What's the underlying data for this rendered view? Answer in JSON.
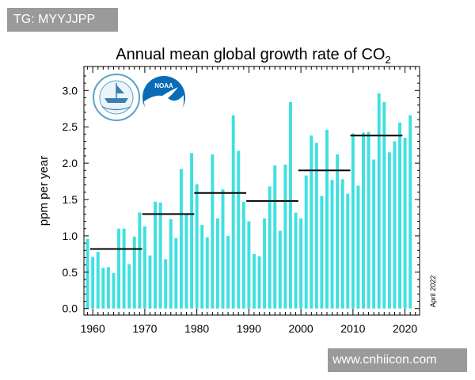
{
  "overlay": {
    "tag_text": "TG: MYYJJPP",
    "site_text": "www.cnhiicon.com"
  },
  "logos": {
    "noaa_text": "NOAA",
    "seal_icon": "commerce-seal-icon",
    "noaa_icon": "noaa-logo-icon"
  },
  "chart_data": {
    "type": "bar",
    "title": "Annual mean global growth rate of CO",
    "title_subscript": "2",
    "xlabel": "",
    "ylabel": "ppm per year",
    "note": "April 2022",
    "ylim": [
      -0.09,
      3.33
    ],
    "xlim": [
      1958.3,
      2022.8
    ],
    "yticks": [
      0.0,
      0.5,
      1.0,
      1.5,
      2.0,
      2.5,
      3.0
    ],
    "ytick_labels": [
      "0.0",
      "0.5",
      "1.0",
      "1.5",
      "2.0",
      "2.5",
      "3.0"
    ],
    "xticks": [
      1960,
      1970,
      1980,
      1990,
      2000,
      2010,
      2020
    ],
    "xtick_labels": [
      "1960",
      "1970",
      "1980",
      "1990",
      "2000",
      "2010",
      "2020"
    ],
    "bar_color": "#40e0e0",
    "x": [
      1959,
      1960,
      1961,
      1962,
      1963,
      1964,
      1965,
      1966,
      1967,
      1968,
      1969,
      1970,
      1971,
      1972,
      1973,
      1974,
      1975,
      1976,
      1977,
      1978,
      1979,
      1980,
      1981,
      1982,
      1983,
      1984,
      1985,
      1986,
      1987,
      1988,
      1989,
      1990,
      1991,
      1992,
      1993,
      1994,
      1995,
      1996,
      1997,
      1998,
      1999,
      2000,
      2001,
      2002,
      2003,
      2004,
      2005,
      2006,
      2007,
      2008,
      2009,
      2010,
      2011,
      2012,
      2013,
      2014,
      2015,
      2016,
      2017,
      2018,
      2019,
      2020,
      2021
    ],
    "values": [
      0.96,
      0.71,
      0.78,
      0.56,
      0.57,
      0.49,
      1.1,
      1.1,
      0.61,
      0.99,
      1.32,
      1.13,
      0.73,
      1.47,
      1.46,
      0.68,
      1.23,
      0.97,
      1.92,
      1.29,
      2.14,
      1.71,
      1.15,
      0.98,
      2.12,
      1.24,
      1.64,
      1.0,
      2.66,
      2.17,
      1.47,
      1.2,
      0.75,
      0.72,
      1.24,
      1.68,
      1.97,
      1.07,
      1.98,
      2.84,
      1.32,
      1.24,
      1.83,
      2.38,
      2.28,
      1.55,
      2.46,
      1.77,
      2.12,
      1.78,
      1.58,
      2.41,
      1.69,
      2.42,
      2.43,
      2.05,
      2.96,
      2.84,
      2.15,
      2.3,
      2.56,
      2.35,
      2.66
    ],
    "decade_means": [
      {
        "x_start": 1959.5,
        "x_end": 1969.5,
        "value": 0.82
      },
      {
        "x_start": 1969.5,
        "x_end": 1979.5,
        "value": 1.3
      },
      {
        "x_start": 1979.5,
        "x_end": 1989.5,
        "value": 1.59
      },
      {
        "x_start": 1989.5,
        "x_end": 1999.5,
        "value": 1.48
      },
      {
        "x_start": 1999.5,
        "x_end": 2009.5,
        "value": 1.9
      },
      {
        "x_start": 2009.5,
        "x_end": 2019.5,
        "value": 2.38
      }
    ],
    "grid": false
  }
}
